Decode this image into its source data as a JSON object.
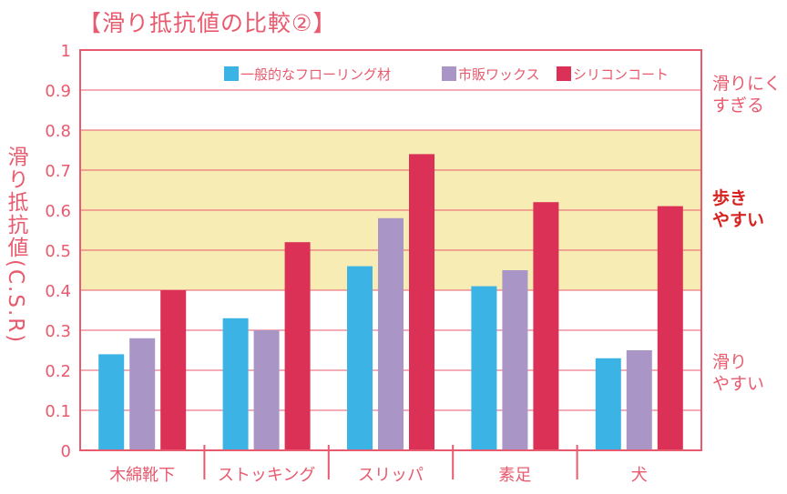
{
  "title": "【滑り抵抗値の比較②】",
  "chart_data": {
    "type": "bar",
    "ylabel": "滑り抵抗値(C.S.R)",
    "xlabel": "",
    "ylim": [
      0,
      1
    ],
    "yticks": [
      "0",
      "0.1",
      "0.2",
      "0.3",
      "0.4",
      "0.5",
      "0.6",
      "0.7",
      "0.8",
      "0.9",
      "1"
    ],
    "categories": [
      "木綿靴下",
      "ストッキング",
      "スリッパ",
      "素足",
      "犬"
    ],
    "series": [
      {
        "name": "一般的なフローリング材",
        "color": "#3bb3e5",
        "values": [
          0.24,
          0.33,
          0.46,
          0.41,
          0.23
        ]
      },
      {
        "name": "市販ワックス",
        "color": "#a996c6",
        "values": [
          0.28,
          0.3,
          0.58,
          0.45,
          0.25
        ]
      },
      {
        "name": "シリコンコート",
        "color": "#dc3156",
        "values": [
          0.4,
          0.52,
          0.74,
          0.62,
          0.61
        ]
      }
    ],
    "highlight_band": [
      0.4,
      0.8
    ],
    "highlight_color": "#f7ecb3",
    "grid": true,
    "legend_position": "top-right",
    "zones": [
      {
        "label_line1": "滑りにく",
        "label_line2": "すぎる"
      },
      {
        "label_line1": "歩き",
        "label_line2": "やすい"
      },
      {
        "label_line1": "滑り",
        "label_line2": "やすい"
      }
    ]
  }
}
